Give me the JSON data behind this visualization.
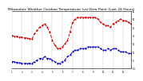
{
  "title": "Milwaukee Weather Outdoor Temperature (vs) Dew Point (Last 24 Hours)",
  "title_fontsize": 3.2,
  "background_color": "#ffffff",
  "plot_bg_color": "#ffffff",
  "grid_color": "#888888",
  "x_values": [
    0,
    1,
    2,
    3,
    4,
    5,
    6,
    7,
    8,
    9,
    10,
    11,
    12,
    13,
    14,
    15,
    16,
    17,
    18,
    19,
    20,
    21,
    22,
    23,
    24,
    25,
    26,
    27,
    28,
    29,
    30,
    31,
    32,
    33,
    34,
    35,
    36,
    37,
    38,
    39,
    40,
    41,
    42,
    43,
    44,
    45,
    46,
    47
  ],
  "temp_values": [
    30,
    29,
    29,
    28,
    28,
    27,
    27,
    26,
    26,
    32,
    36,
    40,
    42,
    44,
    40,
    34,
    24,
    18,
    14,
    14,
    16,
    20,
    24,
    34,
    46,
    50,
    52,
    52,
    52,
    52,
    52,
    52,
    52,
    52,
    50,
    46,
    44,
    42,
    42,
    40,
    44,
    46,
    48,
    50,
    48,
    48,
    46,
    44
  ],
  "dew_values": [
    -2,
    -2,
    -3,
    -3,
    -4,
    -4,
    -4,
    -4,
    -4,
    -2,
    0,
    2,
    2,
    4,
    2,
    2,
    0,
    -2,
    -4,
    -4,
    -2,
    0,
    4,
    6,
    10,
    12,
    12,
    14,
    14,
    14,
    16,
    16,
    16,
    16,
    16,
    14,
    12,
    12,
    14,
    12,
    14,
    14,
    12,
    10,
    10,
    10,
    8,
    8
  ],
  "temp_color": "#cc0000",
  "dew_color": "#0000bb",
  "line_style": "--",
  "linewidth": 0.7,
  "markersize": 1.5,
  "ylim": [
    -10,
    60
  ],
  "xlim": [
    0,
    47
  ],
  "y_tick_values": [
    -10,
    0,
    10,
    20,
    30,
    40,
    50,
    60
  ],
  "y_tick_labels": [
    "-10",
    "0",
    "10",
    "20",
    "30",
    "40",
    "50",
    "60"
  ],
  "vgrid_count": 12,
  "vgrid_positions": [
    0,
    4,
    8,
    12,
    16,
    20,
    24,
    28,
    32,
    36,
    40,
    44
  ],
  "x_tick_positions": [
    0,
    4,
    8,
    12,
    16,
    20,
    24,
    28,
    32,
    36,
    40,
    44
  ],
  "x_tick_labels": [
    "1",
    "2",
    "3",
    "4",
    "5",
    "6",
    "7",
    "8",
    "9",
    "10",
    "11",
    "12"
  ]
}
